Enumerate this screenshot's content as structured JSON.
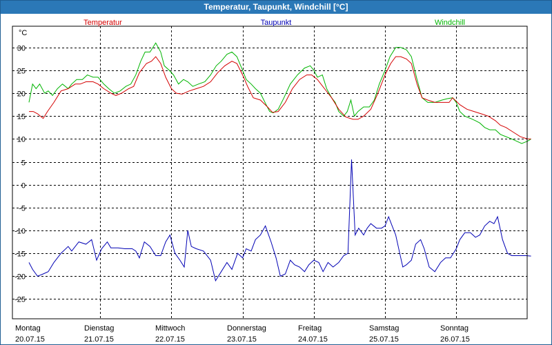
{
  "window": {
    "title": "Temperatur, Taupunkt, Windchill [°C]"
  },
  "chart_data": {
    "type": "line",
    "title": "Temperatur, Taupunkt, Windchill [°C]",
    "ylabel": "°C",
    "ylim": [
      -30,
      35
    ],
    "xlim": [
      0,
      7.05
    ],
    "yticks": [
      "30",
      "25",
      "20",
      "15",
      "10",
      "5",
      "0",
      "-5",
      "-10",
      "-15",
      "-20",
      "-25"
    ],
    "yticks_values": [
      30,
      25,
      20,
      15,
      10,
      5,
      0,
      -5,
      -10,
      -15,
      -20,
      -25
    ],
    "grid": true,
    "x_days": [
      {
        "day": "Montag",
        "date": "20.07.15"
      },
      {
        "day": "Dienstag",
        "date": "21.07.15"
      },
      {
        "day": "Mittwoch",
        "date": "22.07.15"
      },
      {
        "day": "Donnerstag",
        "date": "23.07.15"
      },
      {
        "day": "Freitag",
        "date": "24.07.15"
      },
      {
        "day": "Samstag",
        "date": "25.07.15"
      },
      {
        "day": "Sonntag",
        "date": "26.07.15"
      }
    ],
    "series": [
      {
        "name": "Temperatur",
        "color": "#d40000",
        "points": [
          [
            0,
            16
          ],
          [
            0.06,
            16
          ],
          [
            0.12,
            15.5
          ],
          [
            0.2,
            14.5
          ],
          [
            0.26,
            16
          ],
          [
            0.35,
            18
          ],
          [
            0.45,
            20.5
          ],
          [
            0.55,
            21
          ],
          [
            0.65,
            22
          ],
          [
            0.72,
            22
          ],
          [
            0.8,
            22.5
          ],
          [
            0.9,
            22.5
          ],
          [
            0.97,
            22
          ],
          [
            1.05,
            21
          ],
          [
            1.15,
            20
          ],
          [
            1.22,
            19.5
          ],
          [
            1.3,
            20
          ],
          [
            1.4,
            21
          ],
          [
            1.47,
            21.5
          ],
          [
            1.55,
            24.5
          ],
          [
            1.65,
            26.5
          ],
          [
            1.72,
            27
          ],
          [
            1.78,
            28
          ],
          [
            1.85,
            26.5
          ],
          [
            1.92,
            23.5
          ],
          [
            2.0,
            21
          ],
          [
            2.07,
            20
          ],
          [
            2.15,
            19.8
          ],
          [
            2.25,
            20.5
          ],
          [
            2.35,
            21
          ],
          [
            2.45,
            21.5
          ],
          [
            2.55,
            22.5
          ],
          [
            2.65,
            24.5
          ],
          [
            2.75,
            26
          ],
          [
            2.85,
            27
          ],
          [
            2.92,
            26.5
          ],
          [
            3.0,
            24
          ],
          [
            3.07,
            21.5
          ],
          [
            3.15,
            19
          ],
          [
            3.25,
            18.5
          ],
          [
            3.35,
            17
          ],
          [
            3.42,
            15.8
          ],
          [
            3.5,
            16
          ],
          [
            3.6,
            18
          ],
          [
            3.7,
            21
          ],
          [
            3.8,
            23
          ],
          [
            3.9,
            24
          ],
          [
            3.97,
            24
          ],
          [
            4.05,
            23
          ],
          [
            4.15,
            21
          ],
          [
            4.25,
            19
          ],
          [
            4.35,
            16.5
          ],
          [
            4.45,
            14.8
          ],
          [
            4.55,
            14.3
          ],
          [
            4.62,
            14.3
          ],
          [
            4.7,
            15
          ],
          [
            4.8,
            16.5
          ],
          [
            4.9,
            20
          ],
          [
            5.0,
            24
          ],
          [
            5.08,
            26.5
          ],
          [
            5.15,
            28
          ],
          [
            5.22,
            28
          ],
          [
            5.3,
            27.5
          ],
          [
            5.37,
            26.5
          ],
          [
            5.45,
            22
          ],
          [
            5.52,
            19
          ],
          [
            5.6,
            18.5
          ],
          [
            5.7,
            18
          ],
          [
            5.8,
            18
          ],
          [
            5.9,
            18
          ],
          [
            5.95,
            19
          ],
          [
            6.05,
            17.5
          ],
          [
            6.15,
            16.5
          ],
          [
            6.25,
            16
          ],
          [
            6.35,
            15.5
          ],
          [
            6.45,
            15
          ],
          [
            6.55,
            14
          ],
          [
            6.62,
            13
          ],
          [
            6.7,
            12.5
          ],
          [
            6.8,
            11.5
          ],
          [
            6.9,
            10.5
          ],
          [
            7.0,
            10
          ],
          [
            7.05,
            10
          ]
        ]
      },
      {
        "name": "Taupunkt",
        "color": "#0000b4",
        "points": [
          [
            0,
            -17
          ],
          [
            0.05,
            -18.5
          ],
          [
            0.12,
            -20
          ],
          [
            0.2,
            -19.5
          ],
          [
            0.27,
            -19
          ],
          [
            0.35,
            -17
          ],
          [
            0.45,
            -15
          ],
          [
            0.55,
            -13.5
          ],
          [
            0.6,
            -14.5
          ],
          [
            0.7,
            -12.5
          ],
          [
            0.8,
            -13
          ],
          [
            0.88,
            -12
          ],
          [
            0.95,
            -16.5
          ],
          [
            1.02,
            -14
          ],
          [
            1.1,
            -12.5
          ],
          [
            1.15,
            -13.8
          ],
          [
            1.25,
            -13.8
          ],
          [
            1.35,
            -14
          ],
          [
            1.45,
            -14
          ],
          [
            1.5,
            -14.5
          ],
          [
            1.55,
            -16
          ],
          [
            1.62,
            -12.5
          ],
          [
            1.7,
            -13.5
          ],
          [
            1.78,
            -15.5
          ],
          [
            1.85,
            -15.5
          ],
          [
            1.92,
            -12.5
          ],
          [
            1.98,
            -11
          ],
          [
            2.05,
            -15
          ],
          [
            2.12,
            -16.5
          ],
          [
            2.18,
            -18
          ],
          [
            2.23,
            -10
          ],
          [
            2.28,
            -13.5
          ],
          [
            2.35,
            -14
          ],
          [
            2.45,
            -14.5
          ],
          [
            2.55,
            -16.5
          ],
          [
            2.62,
            -21
          ],
          [
            2.7,
            -19
          ],
          [
            2.78,
            -17
          ],
          [
            2.85,
            -18.5
          ],
          [
            2.93,
            -15
          ],
          [
            3.0,
            -16
          ],
          [
            3.05,
            -14
          ],
          [
            3.12,
            -14.5
          ],
          [
            3.18,
            -12
          ],
          [
            3.25,
            -11
          ],
          [
            3.32,
            -9
          ],
          [
            3.4,
            -12.5
          ],
          [
            3.47,
            -16
          ],
          [
            3.53,
            -20
          ],
          [
            3.6,
            -19.5
          ],
          [
            3.67,
            -16.5
          ],
          [
            3.73,
            -17.5
          ],
          [
            3.8,
            -18
          ],
          [
            3.87,
            -19
          ],
          [
            3.93,
            -17.5
          ],
          [
            4.0,
            -16.5
          ],
          [
            4.07,
            -17
          ],
          [
            4.13,
            -19
          ],
          [
            4.2,
            -17
          ],
          [
            4.27,
            -18
          ],
          [
            4.35,
            -17
          ],
          [
            4.42,
            -15.5
          ],
          [
            4.48,
            -15
          ],
          [
            4.53,
            5.5
          ],
          [
            4.58,
            -11
          ],
          [
            4.63,
            -9.5
          ],
          [
            4.7,
            -11
          ],
          [
            4.75,
            -9.5
          ],
          [
            4.8,
            -8.5
          ],
          [
            4.88,
            -9.5
          ],
          [
            4.95,
            -9.5
          ],
          [
            5.0,
            -9
          ],
          [
            5.05,
            -7
          ],
          [
            5.1,
            -9
          ],
          [
            5.15,
            -11
          ],
          [
            5.2,
            -14.5
          ],
          [
            5.25,
            -18
          ],
          [
            5.3,
            -17.5
          ],
          [
            5.37,
            -16.5
          ],
          [
            5.43,
            -13
          ],
          [
            5.5,
            -12
          ],
          [
            5.55,
            -14
          ],
          [
            5.62,
            -18
          ],
          [
            5.7,
            -19
          ],
          [
            5.78,
            -17
          ],
          [
            5.85,
            -16
          ],
          [
            5.92,
            -16
          ],
          [
            6.0,
            -14
          ],
          [
            6.05,
            -12
          ],
          [
            6.12,
            -10.5
          ],
          [
            6.2,
            -10.5
          ],
          [
            6.27,
            -11.5
          ],
          [
            6.33,
            -11
          ],
          [
            6.4,
            -9
          ],
          [
            6.47,
            -8
          ],
          [
            6.53,
            -8.5
          ],
          [
            6.58,
            -7
          ],
          [
            6.65,
            -12
          ],
          [
            6.72,
            -15
          ],
          [
            6.78,
            -15.5
          ],
          [
            6.85,
            -15.5
          ],
          [
            6.92,
            -15.5
          ],
          [
            6.98,
            -15.5
          ],
          [
            7.05,
            -15.6
          ]
        ]
      },
      {
        "name": "Windchill",
        "color": "#00b400",
        "points": [
          [
            0,
            18
          ],
          [
            0.05,
            22
          ],
          [
            0.1,
            21
          ],
          [
            0.15,
            22
          ],
          [
            0.22,
            20
          ],
          [
            0.27,
            20.5
          ],
          [
            0.33,
            19.5
          ],
          [
            0.4,
            21
          ],
          [
            0.47,
            22
          ],
          [
            0.55,
            21
          ],
          [
            0.6,
            22
          ],
          [
            0.67,
            23
          ],
          [
            0.75,
            23
          ],
          [
            0.82,
            24
          ],
          [
            0.9,
            23.5
          ],
          [
            0.97,
            23.5
          ],
          [
            1.05,
            22
          ],
          [
            1.12,
            21
          ],
          [
            1.2,
            20
          ],
          [
            1.28,
            20.5
          ],
          [
            1.36,
            21.5
          ],
          [
            1.43,
            22
          ],
          [
            1.5,
            24
          ],
          [
            1.57,
            27
          ],
          [
            1.63,
            29
          ],
          [
            1.7,
            29
          ],
          [
            1.78,
            31
          ],
          [
            1.85,
            29
          ],
          [
            1.9,
            26
          ],
          [
            1.97,
            25
          ],
          [
            2.03,
            24
          ],
          [
            2.1,
            22
          ],
          [
            2.17,
            23
          ],
          [
            2.23,
            22.5
          ],
          [
            2.3,
            21.5
          ],
          [
            2.38,
            22
          ],
          [
            2.47,
            22.5
          ],
          [
            2.55,
            24
          ],
          [
            2.63,
            26
          ],
          [
            2.7,
            27
          ],
          [
            2.78,
            28.5
          ],
          [
            2.85,
            29
          ],
          [
            2.92,
            28
          ],
          [
            3.0,
            25
          ],
          [
            3.05,
            23
          ],
          [
            3.12,
            22
          ],
          [
            3.18,
            21
          ],
          [
            3.25,
            20
          ],
          [
            3.33,
            17.5
          ],
          [
            3.38,
            16
          ],
          [
            3.43,
            15.7
          ],
          [
            3.5,
            16.5
          ],
          [
            3.58,
            19
          ],
          [
            3.67,
            22
          ],
          [
            3.77,
            24
          ],
          [
            3.87,
            25.5
          ],
          [
            3.95,
            26
          ],
          [
            4.0,
            25
          ],
          [
            4.05,
            23.5
          ],
          [
            4.12,
            24
          ],
          [
            4.18,
            21
          ],
          [
            4.25,
            19
          ],
          [
            4.3,
            18
          ],
          [
            4.35,
            16
          ],
          [
            4.42,
            15
          ],
          [
            4.47,
            16
          ],
          [
            4.52,
            18.5
          ],
          [
            4.57,
            15
          ],
          [
            4.62,
            16
          ],
          [
            4.7,
            17
          ],
          [
            4.78,
            17
          ],
          [
            4.85,
            18.5
          ],
          [
            4.92,
            22
          ],
          [
            5.0,
            25
          ],
          [
            5.07,
            28
          ],
          [
            5.15,
            30
          ],
          [
            5.22,
            30
          ],
          [
            5.3,
            29.5
          ],
          [
            5.37,
            28
          ],
          [
            5.45,
            23
          ],
          [
            5.52,
            19
          ],
          [
            5.6,
            18
          ],
          [
            5.7,
            18
          ],
          [
            5.8,
            18.5
          ],
          [
            5.87,
            18.8
          ],
          [
            5.95,
            19
          ],
          [
            6.0,
            18
          ],
          [
            6.05,
            16
          ],
          [
            6.12,
            15
          ],
          [
            6.2,
            14.5
          ],
          [
            6.27,
            14
          ],
          [
            6.33,
            13.5
          ],
          [
            6.4,
            12.5
          ],
          [
            6.47,
            12
          ],
          [
            6.55,
            12
          ],
          [
            6.62,
            11
          ],
          [
            6.7,
            10.5
          ],
          [
            6.78,
            10
          ],
          [
            6.85,
            9.5
          ],
          [
            6.92,
            9
          ],
          [
            7.0,
            9.5
          ],
          [
            7.05,
            10
          ]
        ]
      }
    ]
  }
}
